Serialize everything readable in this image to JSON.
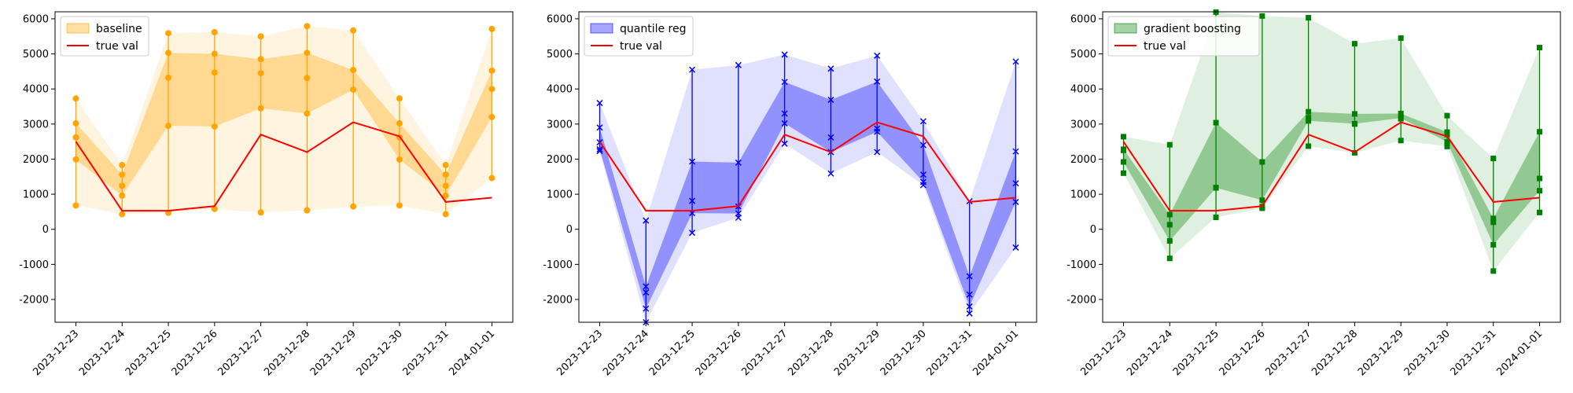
{
  "chart_data": [
    {
      "type": "line",
      "x": [
        "2023-12-23",
        "2023-12-24",
        "2023-12-25",
        "2023-12-26",
        "2023-12-27",
        "2023-12-28",
        "2023-12-29",
        "2023-12-30",
        "2023-12-31",
        "2024-01-01"
      ],
      "ylim": [
        -2650,
        6200
      ],
      "yticks": [
        -2000,
        -1000,
        0,
        1000,
        2000,
        3000,
        4000,
        5000,
        6000
      ],
      "grid": false,
      "legend_position": "top-left",
      "marker": "circle",
      "colors": {
        "interval": "#ffa500",
        "true": "#ff0000"
      },
      "series": [
        {
          "name": "baseline",
          "outer_low": [
            680,
            430,
            470,
            580,
            480,
            540,
            650,
            680,
            430,
            1460
          ],
          "inner_low": [
            1990,
            960,
            2950,
            2930,
            3450,
            3300,
            3980,
            1990,
            960,
            3200
          ],
          "inner_high": [
            3020,
            1560,
            5030,
            5000,
            4850,
            5030,
            4540,
            3020,
            1560,
            4520
          ],
          "outer_high": [
            3730,
            1830,
            5590,
            5620,
            5500,
            5790,
            5670,
            3730,
            1830,
            5710
          ],
          "median": [
            2620,
            1240,
            4320,
            4470,
            4450,
            4310,
            4540,
            2620,
            1240,
            4000
          ]
        },
        {
          "name": "true val",
          "values": [
            2500,
            530,
            530,
            660,
            2700,
            2200,
            3050,
            2650,
            780,
            900
          ]
        }
      ]
    },
    {
      "type": "line",
      "x": [
        "2023-12-23",
        "2023-12-24",
        "2023-12-25",
        "2023-12-26",
        "2023-12-27",
        "2023-12-28",
        "2023-12-29",
        "2023-12-30",
        "2023-12-31",
        "2024-01-01"
      ],
      "ylim": [
        -2650,
        6200
      ],
      "yticks": [
        -2000,
        -1000,
        0,
        1000,
        2000,
        3000,
        4000,
        5000,
        6000
      ],
      "grid": false,
      "legend_position": "top-left",
      "marker": "x",
      "colors": {
        "interval": "#0000ff",
        "true": "#ff0000"
      },
      "series": [
        {
          "name": "quantile reg",
          "outer_low": [
            2230,
            -2650,
            -100,
            330,
            2440,
            1590,
            2200,
            1260,
            -2400,
            -520
          ],
          "inner_low": [
            2280,
            -2260,
            460,
            450,
            3020,
            2200,
            2780,
            1350,
            -2200,
            780
          ],
          "inner_high": [
            2900,
            -1630,
            1930,
            1900,
            4200,
            3690,
            4210,
            2400,
            -1340,
            2220
          ],
          "outer_high": [
            3600,
            250,
            4550,
            4680,
            4980,
            4580,
            4950,
            3080,
            800,
            4780
          ],
          "median": [
            2480,
            -1800,
            810,
            650,
            3300,
            2620,
            2870,
            1560,
            -1860,
            1310
          ]
        },
        {
          "name": "true val",
          "values": [
            2500,
            530,
            530,
            660,
            2700,
            2200,
            3050,
            2650,
            780,
            900
          ]
        }
      ]
    },
    {
      "type": "line",
      "x": [
        "2023-12-23",
        "2023-12-24",
        "2023-12-25",
        "2023-12-26",
        "2023-12-27",
        "2023-12-28",
        "2023-12-29",
        "2023-12-30",
        "2023-12-31",
        "2024-01-01"
      ],
      "ylim": [
        -2650,
        6200
      ],
      "yticks": [
        -2000,
        -1000,
        0,
        1000,
        2000,
        3000,
        4000,
        5000,
        6000
      ],
      "grid": false,
      "legend_position": "top-left",
      "marker": "square",
      "colors": {
        "interval": "#008000",
        "true": "#ff0000"
      },
      "series": [
        {
          "name": "gradient boosting",
          "outer_low": [
            1600,
            -830,
            340,
            600,
            2370,
            2180,
            2530,
            2360,
            -1190,
            480
          ],
          "inner_low": [
            1920,
            -330,
            1180,
            830,
            3090,
            3010,
            3170,
            2490,
            -440,
            1100
          ],
          "inner_high": [
            2280,
            420,
            3040,
            1920,
            3350,
            3290,
            3300,
            2770,
            310,
            2780
          ],
          "outer_high": [
            2640,
            2410,
            6190,
            6080,
            6030,
            5290,
            5450,
            3240,
            2020,
            5180
          ],
          "median": [
            2250,
            130,
            1190,
            650,
            3180,
            3000,
            3150,
            2700,
            200,
            1450
          ]
        },
        {
          "name": "true val",
          "values": [
            2500,
            530,
            530,
            660,
            2700,
            2200,
            3050,
            2650,
            780,
            900
          ]
        }
      ]
    }
  ]
}
